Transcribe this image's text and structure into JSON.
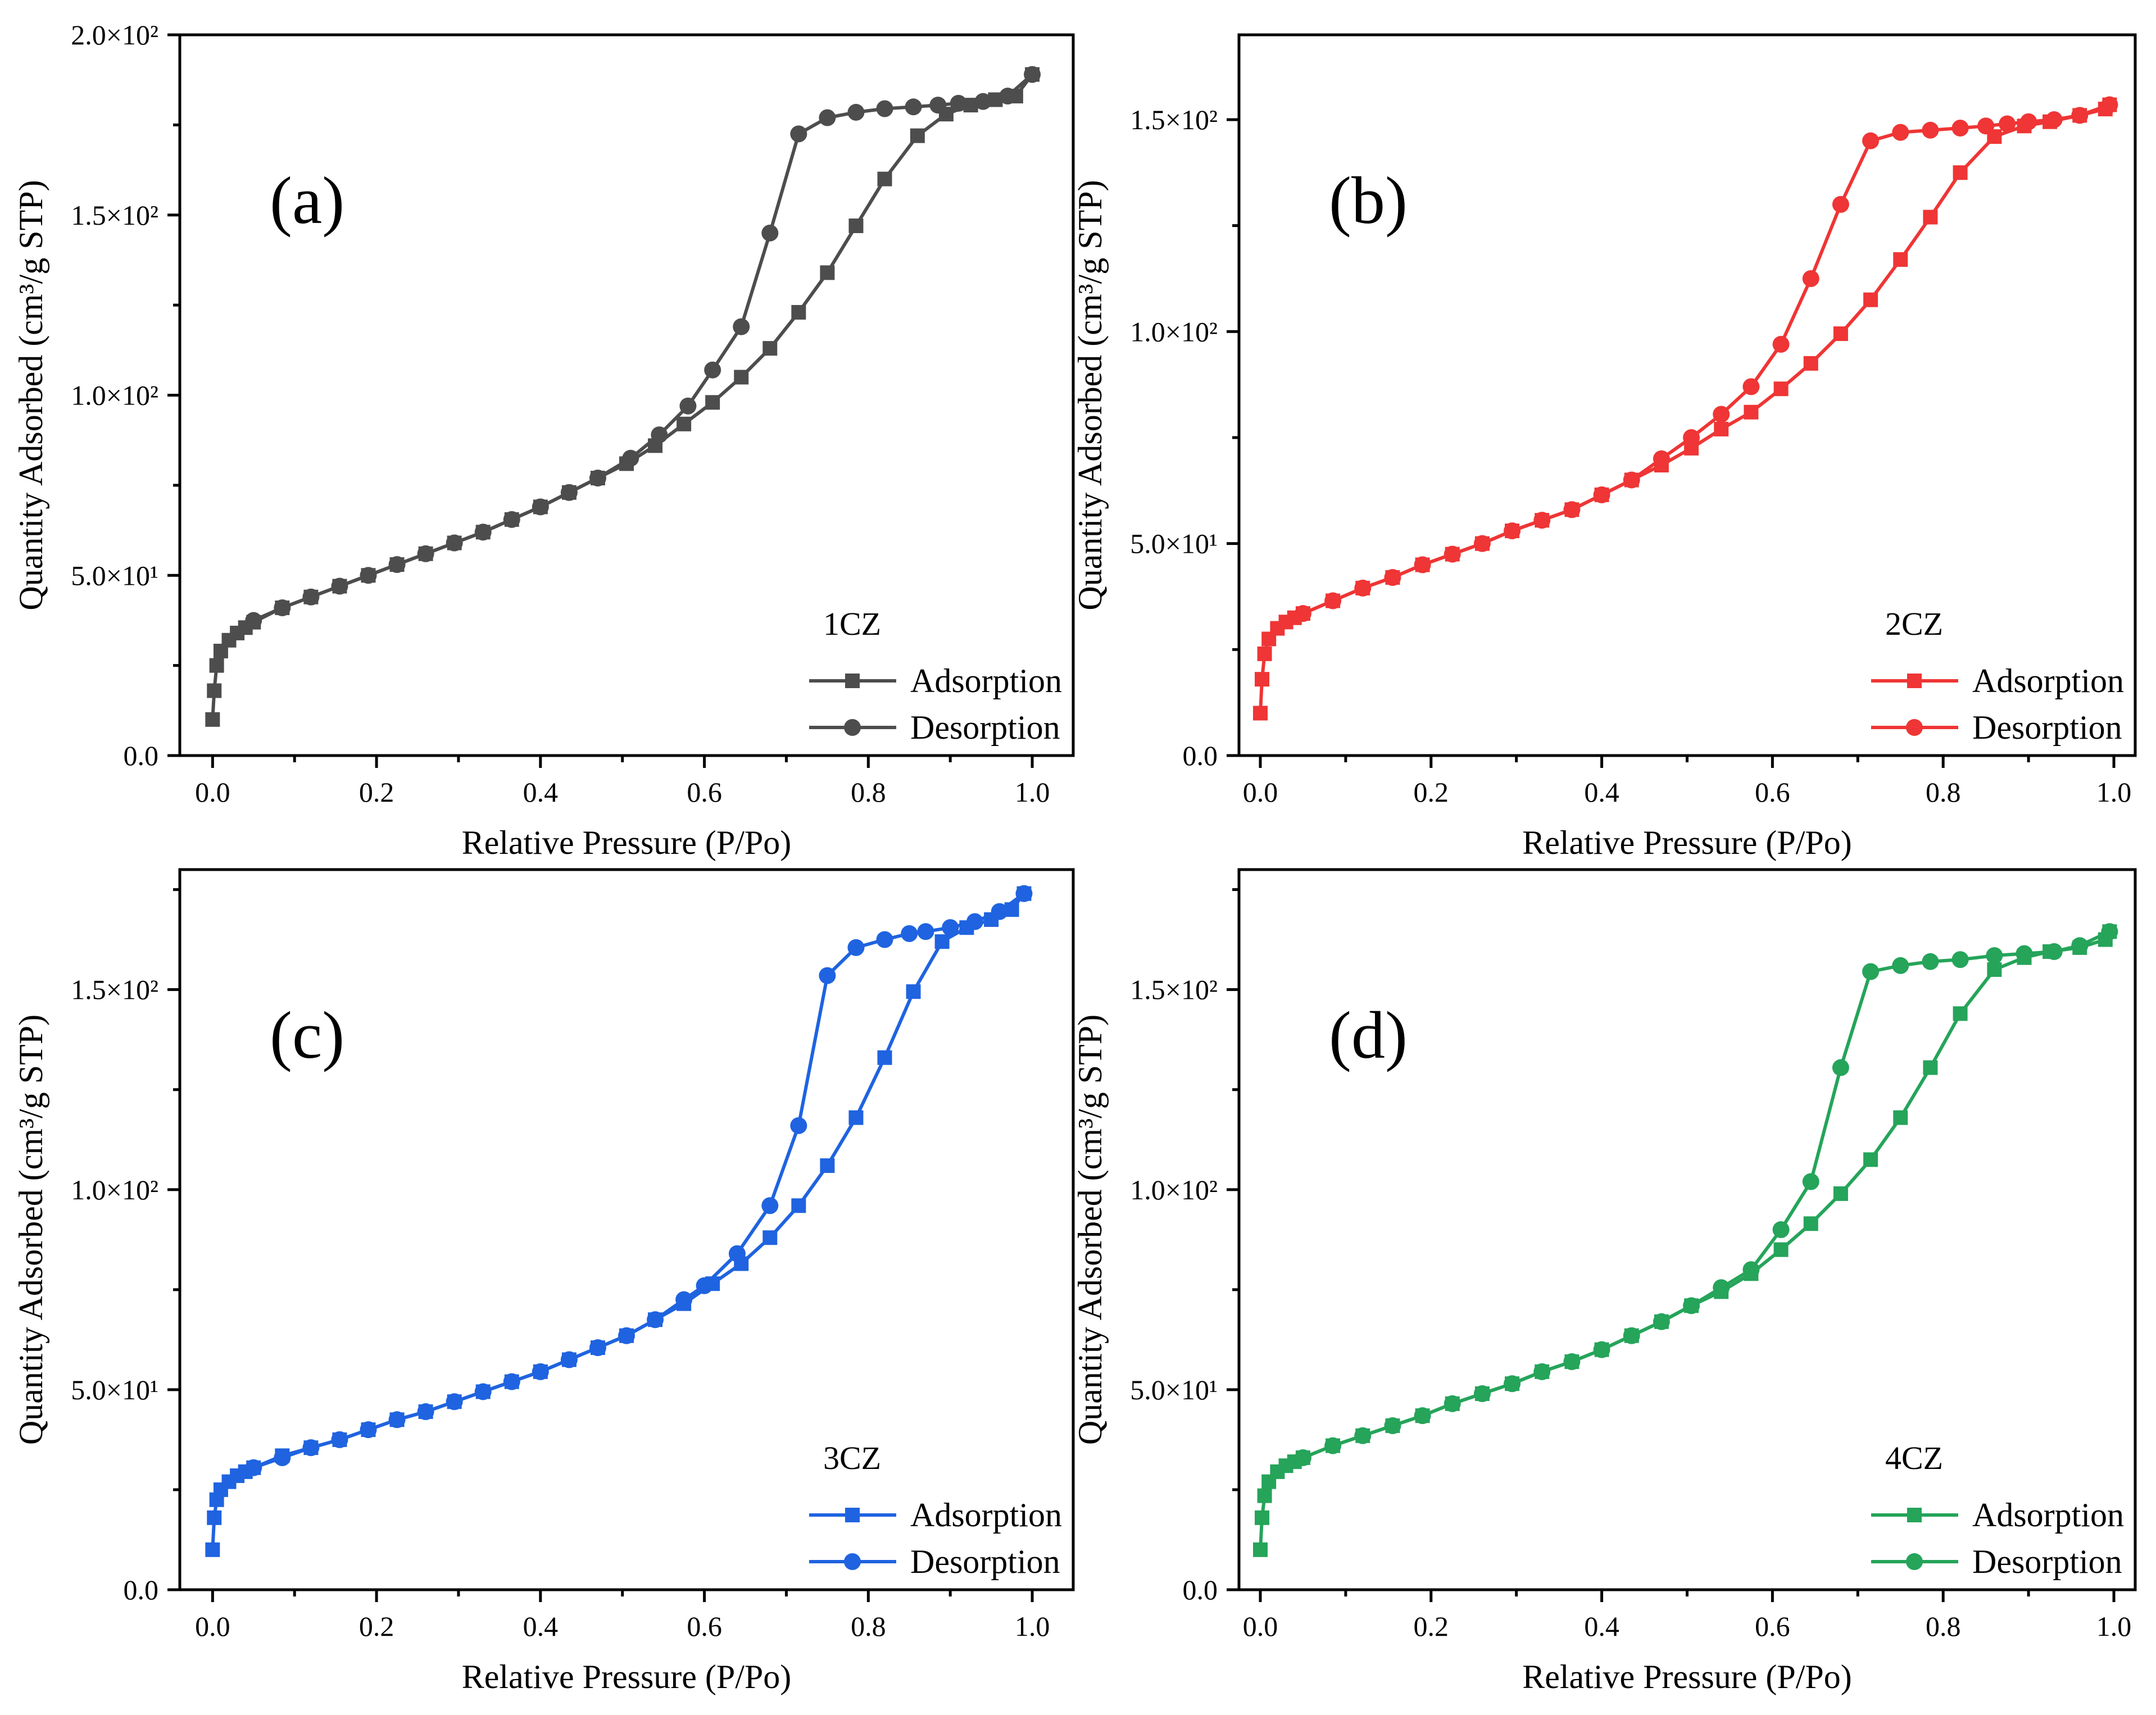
{
  "chart_data": [
    {
      "id": "a",
      "type": "line",
      "panel_label": "(a)",
      "xlabel": "Relative Pressure (P/Po)",
      "ylabel": "Quantity Adsorbed (cm³/g STP)",
      "xlim": [
        -0.04,
        1.05
      ],
      "ylim": [
        0,
        200
      ],
      "xticks": [
        0.0,
        0.2,
        0.4,
        0.6,
        0.8,
        1.0
      ],
      "xtick_labels": [
        "0.0",
        "0.2",
        "0.4",
        "0.6",
        "0.8",
        "1.0"
      ],
      "yticks": [
        0,
        50,
        100,
        150,
        200
      ],
      "ytick_labels": [
        "0.0",
        "5.0×10¹",
        "1.0×10²",
        "1.5×10²",
        "2.0×10²"
      ],
      "color": "#4d4d4d",
      "legend_title": "1CZ",
      "legend_position": "bottom-right",
      "series": [
        {
          "name": "Adsorption",
          "marker": "square",
          "x": [
            0.0,
            0.002,
            0.005,
            0.01,
            0.02,
            0.03,
            0.04,
            0.05,
            0.085,
            0.12,
            0.155,
            0.19,
            0.225,
            0.26,
            0.295,
            0.33,
            0.365,
            0.4,
            0.435,
            0.47,
            0.505,
            0.54,
            0.575,
            0.61,
            0.645,
            0.68,
            0.715,
            0.75,
            0.785,
            0.82,
            0.86,
            0.895,
            0.925,
            0.955,
            0.98,
            1.0
          ],
          "y": [
            10,
            18,
            25,
            29,
            32,
            34,
            35.5,
            37,
            41,
            44,
            47,
            50,
            53,
            56,
            59,
            62,
            65.5,
            69,
            73,
            77,
            81,
            86,
            92,
            98,
            105,
            113,
            123,
            134,
            147,
            160,
            172,
            178,
            180.5,
            182,
            183,
            189
          ]
        },
        {
          "name": "Desorption",
          "marker": "circle",
          "x": [
            1.0,
            0.97,
            0.94,
            0.91,
            0.885,
            0.855,
            0.82,
            0.785,
            0.75,
            0.715,
            0.68,
            0.645,
            0.61,
            0.58,
            0.545,
            0.51,
            0.47,
            0.435,
            0.4,
            0.365,
            0.33,
            0.295,
            0.26,
            0.225,
            0.19,
            0.155,
            0.12,
            0.085,
            0.05
          ],
          "y": [
            189,
            183,
            181.5,
            181,
            180.5,
            180,
            179.5,
            178.5,
            177,
            172.5,
            145,
            119,
            107,
            97,
            89,
            82.5,
            77,
            73,
            69,
            65.5,
            62,
            59,
            56,
            53,
            50,
            47,
            44,
            41,
            37.5
          ]
        }
      ]
    },
    {
      "id": "b",
      "type": "line",
      "panel_label": "(b)",
      "xlabel": "Relative Pressure (P/Po)",
      "ylabel": "Quantity Adsorbed (cm³/g STP)",
      "xlim": [
        -0.025,
        1.025
      ],
      "ylim": [
        0,
        170
      ],
      "xticks": [
        0.0,
        0.2,
        0.4,
        0.6,
        0.8,
        1.0
      ],
      "xtick_labels": [
        "0.0",
        "0.2",
        "0.4",
        "0.6",
        "0.8",
        "1.0"
      ],
      "yticks": [
        0,
        50,
        100,
        150
      ],
      "ytick_labels": [
        "0.0",
        "5.0×10¹",
        "1.0×10²",
        "1.5×10²"
      ],
      "color": "#ef3535",
      "legend_title": "2CZ",
      "legend_position": "bottom-right",
      "series": [
        {
          "name": "Adsorption",
          "marker": "square",
          "x": [
            0.0,
            0.002,
            0.005,
            0.01,
            0.02,
            0.03,
            0.04,
            0.05,
            0.085,
            0.12,
            0.155,
            0.19,
            0.225,
            0.26,
            0.295,
            0.33,
            0.365,
            0.4,
            0.435,
            0.47,
            0.505,
            0.54,
            0.575,
            0.61,
            0.645,
            0.68,
            0.715,
            0.75,
            0.785,
            0.82,
            0.86,
            0.895,
            0.925,
            0.96,
            0.99,
            0.995
          ],
          "y": [
            10,
            18,
            24,
            27.5,
            30,
            31.5,
            32.5,
            33.5,
            36.5,
            39.5,
            42,
            45,
            47.5,
            50,
            53,
            55.5,
            58,
            61.5,
            65,
            68.5,
            72.5,
            77,
            81,
            86.5,
            92.5,
            99.5,
            107.5,
            117,
            127,
            137.5,
            146,
            148.5,
            149.5,
            151,
            152.5,
            153.5
          ]
        },
        {
          "name": "Desorption",
          "marker": "circle",
          "x": [
            0.995,
            0.96,
            0.93,
            0.9,
            0.875,
            0.85,
            0.82,
            0.785,
            0.75,
            0.715,
            0.68,
            0.645,
            0.61,
            0.575,
            0.54,
            0.505,
            0.47,
            0.435,
            0.4,
            0.365,
            0.33,
            0.295,
            0.26,
            0.225,
            0.19,
            0.155,
            0.12,
            0.085,
            0.05
          ],
          "y": [
            153.5,
            151,
            150,
            149.5,
            149,
            148.5,
            148,
            147.5,
            147,
            145,
            130,
            112.5,
            97,
            87,
            80.5,
            75,
            70,
            65,
            61.5,
            58,
            55.5,
            53,
            50,
            47.5,
            45,
            42,
            39.5,
            36.5,
            33.5
          ]
        }
      ]
    },
    {
      "id": "c",
      "type": "line",
      "panel_label": "(c)",
      "xlabel": "Relative Pressure (P/Po)",
      "ylabel": "Quantity Adsorbed (cm³/g STP)",
      "xlim": [
        -0.04,
        1.05
      ],
      "ylim": [
        0,
        180
      ],
      "xticks": [
        0.0,
        0.2,
        0.4,
        0.6,
        0.8,
        1.0
      ],
      "xtick_labels": [
        "0.0",
        "0.2",
        "0.4",
        "0.6",
        "0.8",
        "1.0"
      ],
      "yticks": [
        0,
        50,
        100,
        150
      ],
      "ytick_labels": [
        "0.0",
        "5.0×10¹",
        "1.0×10²",
        "1.5×10²"
      ],
      "color": "#1f63e0",
      "legend_title": "3CZ",
      "legend_position": "bottom-right",
      "series": [
        {
          "name": "Adsorption",
          "marker": "square",
          "x": [
            0.0,
            0.002,
            0.005,
            0.01,
            0.02,
            0.03,
            0.04,
            0.05,
            0.085,
            0.12,
            0.155,
            0.19,
            0.225,
            0.26,
            0.295,
            0.33,
            0.365,
            0.4,
            0.435,
            0.47,
            0.505,
            0.54,
            0.575,
            0.61,
            0.645,
            0.68,
            0.715,
            0.75,
            0.785,
            0.82,
            0.855,
            0.89,
            0.92,
            0.95,
            0.975,
            0.99
          ],
          "y": [
            10,
            18,
            22.5,
            25,
            27,
            28.5,
            29.5,
            30.5,
            33.5,
            35.5,
            37.5,
            40,
            42.5,
            44.5,
            47,
            49.5,
            52,
            54.5,
            57.5,
            60.5,
            63.5,
            67.5,
            71.5,
            76.5,
            81.5,
            88,
            96,
            106,
            118,
            133,
            149.5,
            162,
            165.5,
            167.5,
            170,
            174
          ]
        },
        {
          "name": "Desorption",
          "marker": "circle",
          "x": [
            0.99,
            0.96,
            0.93,
            0.9,
            0.87,
            0.85,
            0.82,
            0.785,
            0.75,
            0.715,
            0.68,
            0.64,
            0.6,
            0.575,
            0.54,
            0.505,
            0.47,
            0.435,
            0.4,
            0.365,
            0.33,
            0.295,
            0.26,
            0.225,
            0.19,
            0.155,
            0.12,
            0.085,
            0.05
          ],
          "y": [
            174,
            169.5,
            167,
            165.5,
            164.5,
            164,
            162.5,
            160.5,
            153.5,
            116,
            96,
            84,
            76,
            72.5,
            67.5,
            63.5,
            60.5,
            57.5,
            54.5,
            52,
            49.5,
            47,
            44.5,
            42.5,
            40,
            37.5,
            35.5,
            33,
            30.5
          ]
        }
      ]
    },
    {
      "id": "d",
      "type": "line",
      "panel_label": "(d)",
      "xlabel": "Relative Pressure (P/Po)",
      "ylabel": "Quantity Adsorbed (cm³/g STP)",
      "xlim": [
        -0.025,
        1.025
      ],
      "ylim": [
        0,
        180
      ],
      "xticks": [
        0.0,
        0.2,
        0.4,
        0.6,
        0.8,
        1.0
      ],
      "xtick_labels": [
        "0.0",
        "0.2",
        "0.4",
        "0.6",
        "0.8",
        "1.0"
      ],
      "yticks": [
        0,
        50,
        100,
        150
      ],
      "ytick_labels": [
        "0.0",
        "5.0×10¹",
        "1.0×10²",
        "1.5×10²"
      ],
      "color": "#25a45a",
      "legend_title": "4CZ",
      "legend_position": "bottom-right",
      "series": [
        {
          "name": "Adsorption",
          "marker": "square",
          "x": [
            0.0,
            0.002,
            0.005,
            0.01,
            0.02,
            0.03,
            0.04,
            0.05,
            0.085,
            0.12,
            0.155,
            0.19,
            0.225,
            0.26,
            0.295,
            0.33,
            0.365,
            0.4,
            0.435,
            0.47,
            0.505,
            0.54,
            0.575,
            0.61,
            0.645,
            0.68,
            0.715,
            0.75,
            0.785,
            0.82,
            0.86,
            0.895,
            0.925,
            0.96,
            0.99,
            0.995
          ],
          "y": [
            10,
            18,
            23.5,
            27,
            29.5,
            31,
            32,
            33,
            36,
            38.5,
            41,
            43.5,
            46.5,
            49,
            51.5,
            54.5,
            57,
            60,
            63.5,
            67,
            71,
            74.5,
            79,
            85,
            91.5,
            99,
            107.5,
            118,
            130.5,
            144,
            155,
            158,
            159.5,
            160.5,
            162.5,
            164.5
          ]
        },
        {
          "name": "Desorption",
          "marker": "circle",
          "x": [
            0.995,
            0.96,
            0.93,
            0.895,
            0.86,
            0.82,
            0.785,
            0.75,
            0.715,
            0.68,
            0.645,
            0.61,
            0.575,
            0.54,
            0.505,
            0.47,
            0.435,
            0.4,
            0.365,
            0.33,
            0.295,
            0.26,
            0.225,
            0.19,
            0.155,
            0.12,
            0.085,
            0.05
          ],
          "y": [
            164.5,
            161,
            159.5,
            159,
            158.5,
            157.5,
            157,
            156,
            154.5,
            130.5,
            102,
            90,
            80,
            75.5,
            71,
            67,
            63.5,
            60,
            57,
            54.5,
            51.5,
            49,
            46.5,
            43.5,
            41,
            38.5,
            36,
            33
          ]
        }
      ]
    }
  ]
}
